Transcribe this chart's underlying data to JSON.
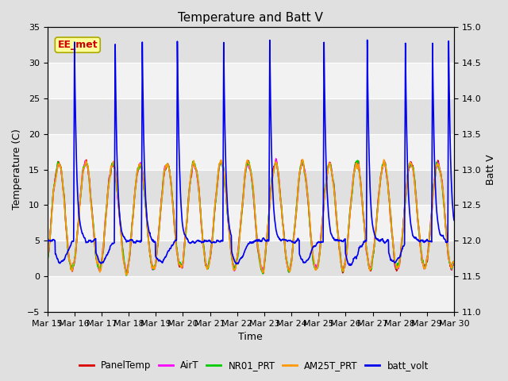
{
  "title": "Temperature and Batt V",
  "xlabel": "Time",
  "ylabel_left": "Temperature (C)",
  "ylabel_right": "Batt V",
  "annotation_text": "EE_met",
  "annotation_color": "#cc0000",
  "annotation_bg": "#ffff99",
  "annotation_border": "#aaa800",
  "xlim_start": 0,
  "xlim_end": 15,
  "ylim_left": [
    -5,
    35
  ],
  "ylim_right": [
    11.0,
    15.0
  ],
  "yticks_left": [
    -5,
    0,
    5,
    10,
    15,
    20,
    25,
    30,
    35
  ],
  "yticks_right": [
    11.0,
    11.5,
    12.0,
    12.5,
    13.0,
    13.5,
    14.0,
    14.5,
    15.0
  ],
  "xtick_labels": [
    "Mar 15",
    "Mar 16",
    "Mar 17",
    "Mar 18",
    "Mar 19",
    "Mar 20",
    "Mar 21",
    "Mar 22",
    "Mar 23",
    "Mar 24",
    "Mar 25",
    "Mar 26",
    "Mar 27",
    "Mar 28",
    "Mar 29",
    "Mar 30"
  ],
  "bg_color": "#e0e0e0",
  "plot_bg_color_light": "#f2f2f2",
  "plot_bg_color_dark": "#e0e0e0",
  "grid_color": "#ffffff",
  "series": {
    "PanelTemp": {
      "color": "#dd0000",
      "lw": 1.2
    },
    "AirT": {
      "color": "#ff00ff",
      "lw": 1.2
    },
    "NR01_PRT": {
      "color": "#00cc00",
      "lw": 1.2
    },
    "AM25T_PRT": {
      "color": "#ff9900",
      "lw": 1.2
    },
    "batt_volt": {
      "color": "#0000ee",
      "lw": 1.2
    }
  }
}
